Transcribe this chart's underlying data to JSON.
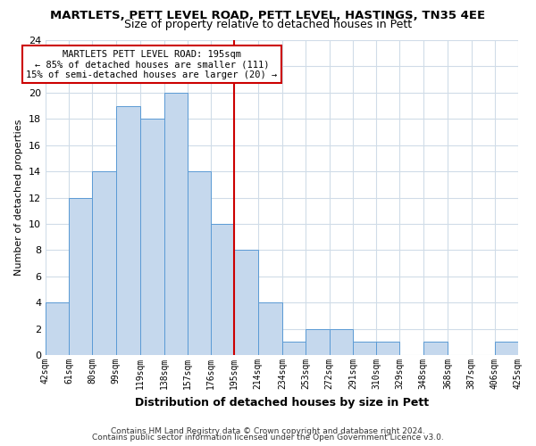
{
  "title": "MARTLETS, PETT LEVEL ROAD, PETT LEVEL, HASTINGS, TN35 4EE",
  "subtitle": "Size of property relative to detached houses in Pett",
  "xlabel": "Distribution of detached houses by size in Pett",
  "ylabel": "Number of detached properties",
  "bin_edges": [
    42,
    61,
    80,
    99,
    119,
    138,
    157,
    176,
    195,
    214,
    234,
    253,
    272,
    291,
    310,
    329,
    348,
    368,
    387,
    406,
    425
  ],
  "bin_labels": [
    "42sqm",
    "61sqm",
    "80sqm",
    "99sqm",
    "119sqm",
    "138sqm",
    "157sqm",
    "176sqm",
    "195sqm",
    "214sqm",
    "234sqm",
    "253sqm",
    "272sqm",
    "291sqm",
    "310sqm",
    "329sqm",
    "348sqm",
    "368sqm",
    "387sqm",
    "406sqm",
    "425sqm"
  ],
  "counts": [
    4,
    12,
    14,
    19,
    18,
    20,
    14,
    10,
    8,
    4,
    1,
    2,
    2,
    1,
    1,
    0,
    1,
    0,
    0,
    1
  ],
  "bar_color": "#c5d8ed",
  "bar_edge_color": "#5b9bd5",
  "vline_x": 195,
  "vline_color": "#cc0000",
  "annotation_title": "MARTLETS PETT LEVEL ROAD: 195sqm",
  "annotation_line1": "← 85% of detached houses are smaller (111)",
  "annotation_line2": "15% of semi-detached houses are larger (20) →",
  "annotation_box_edge": "#cc0000",
  "ylim": [
    0,
    24
  ],
  "yticks": [
    0,
    2,
    4,
    6,
    8,
    10,
    12,
    14,
    16,
    18,
    20,
    22,
    24
  ],
  "footer1": "Contains HM Land Registry data © Crown copyright and database right 2024.",
  "footer2": "Contains public sector information licensed under the Open Government Licence v3.0.",
  "bg_color": "#ffffff",
  "grid_color": "#d0dce8"
}
